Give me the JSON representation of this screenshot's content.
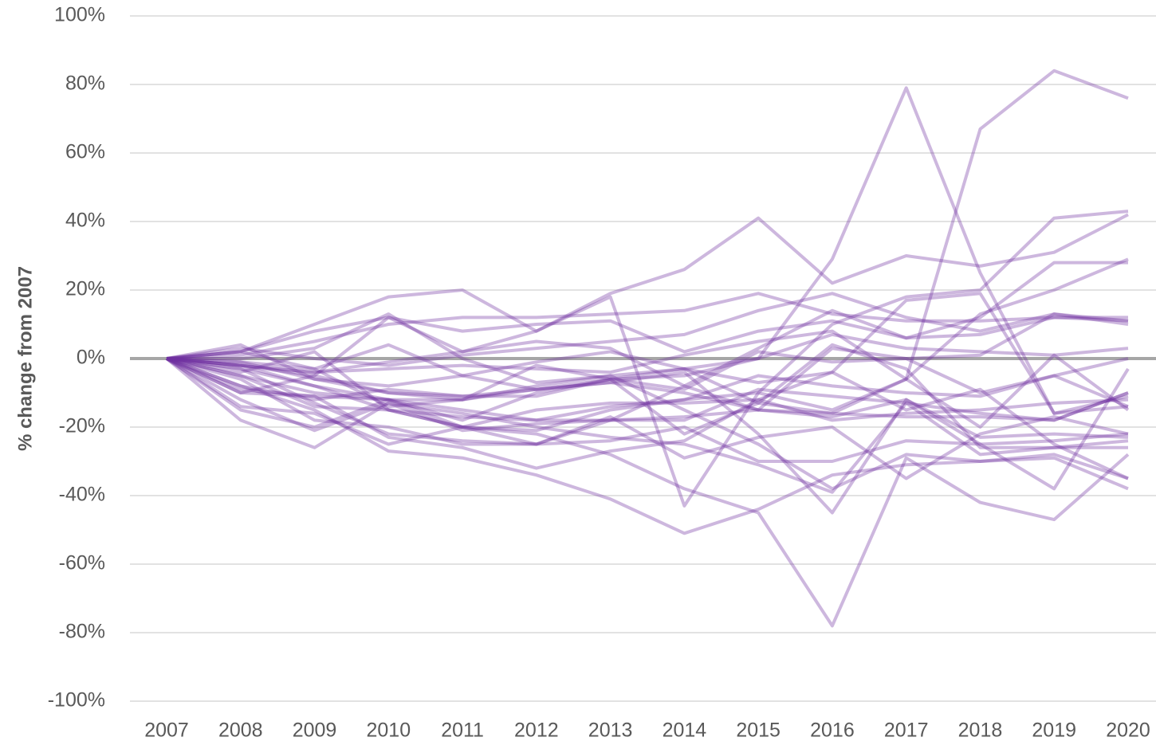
{
  "chart_data": {
    "type": "line",
    "y_label": "% change from 2007",
    "categories": [
      "2007",
      "2008",
      "2009",
      "2010",
      "2011",
      "2012",
      "2013",
      "2014",
      "2015",
      "2016",
      "2017",
      "2018",
      "2019",
      "2020"
    ],
    "ylim": [
      -100,
      100
    ],
    "yticks": [
      {
        "value": -100,
        "label": "-100%"
      },
      {
        "value": -80,
        "label": "-80%"
      },
      {
        "value": -60,
        "label": "-60%"
      },
      {
        "value": -40,
        "label": "-40%"
      },
      {
        "value": -20,
        "label": "-20%"
      },
      {
        "value": 0,
        "label": "0%"
      },
      {
        "value": 20,
        "label": "20%"
      },
      {
        "value": 40,
        "label": "40%"
      },
      {
        "value": 60,
        "label": "60%"
      },
      {
        "value": 80,
        "label": "80%"
      },
      {
        "value": 100,
        "label": "100%"
      }
    ],
    "grid": true,
    "color": "#7030a0",
    "opacity": 0.35,
    "series": [
      {
        "values": [
          0,
          -2,
          -5,
          -10,
          -12,
          -8,
          -5,
          -3,
          0,
          29,
          79,
          25,
          -16,
          -11
        ]
      },
      {
        "values": [
          0,
          -3,
          -8,
          -12,
          -15,
          -18,
          -14,
          -12,
          -10,
          -15,
          -6,
          67,
          84,
          76
        ]
      },
      {
        "values": [
          0,
          2,
          10,
          18,
          20,
          8,
          19,
          26,
          41,
          22,
          30,
          27,
          31,
          42
        ]
      },
      {
        "values": [
          0,
          -5,
          -10,
          -12,
          -20,
          -22,
          -28,
          -38,
          -45,
          -78,
          -29,
          -42,
          -47,
          -28
        ]
      },
      {
        "values": [
          0,
          -8,
          -15,
          -27,
          -29,
          -34,
          -41,
          -51,
          -44,
          -34,
          -31,
          -30,
          -28,
          -35
        ]
      },
      {
        "values": [
          0,
          -10,
          -5,
          12,
          2,
          8,
          18,
          -43,
          -10,
          10,
          18,
          20,
          41,
          43
        ]
      },
      {
        "values": [
          0,
          -2,
          -8,
          -15,
          -20,
          -25,
          -18,
          -8,
          3,
          14,
          6,
          12,
          28,
          28
        ]
      },
      {
        "values": [
          0,
          -15,
          -20,
          -12,
          -18,
          -10,
          -6,
          -3,
          -13,
          -16,
          -6,
          13,
          20,
          29
        ]
      },
      {
        "values": [
          0,
          4,
          -6,
          -10,
          -11,
          -9,
          -7,
          -4,
          -22,
          -45,
          -12,
          -25,
          -38,
          -3
        ]
      },
      {
        "values": [
          0,
          -12,
          -21,
          -13,
          -21,
          -19,
          -18,
          -18,
          -9,
          -11,
          -13,
          -16,
          -18,
          -10
        ]
      },
      {
        "values": [
          0,
          -10,
          -11,
          -12,
          -12,
          -9,
          -7,
          -10,
          -15,
          -16,
          -17,
          -17,
          -18,
          -10
        ]
      },
      {
        "values": [
          0,
          0,
          3,
          13,
          0,
          -7,
          -5,
          -15,
          -25,
          -38,
          -28,
          -30,
          -29,
          -38
        ]
      },
      {
        "values": [
          0,
          -3,
          -13,
          -22,
          -24,
          -25,
          -24,
          -20,
          -30,
          -30,
          -24,
          -25,
          -24,
          -22
        ]
      },
      {
        "values": [
          0,
          -5,
          -14,
          -15,
          -17,
          -18,
          -18,
          -17,
          -15,
          -17,
          -12,
          -23,
          -22,
          -23
        ]
      },
      {
        "values": [
          0,
          -8,
          -12,
          -9,
          -11,
          -11,
          -6,
          -5,
          0,
          7,
          3,
          2,
          1,
          3
        ]
      },
      {
        "values": [
          0,
          1,
          5,
          10,
          12,
          12,
          13,
          14,
          19,
          13,
          11,
          11,
          12,
          11
        ]
      },
      {
        "values": [
          0,
          2,
          8,
          12,
          8,
          10,
          11,
          2,
          8,
          11,
          6,
          7,
          12,
          12
        ]
      },
      {
        "values": [
          0,
          -1,
          -3,
          4,
          -5,
          -9,
          -6,
          -9,
          2,
          -1,
          0,
          1,
          13,
          11
        ]
      },
      {
        "values": [
          0,
          -4,
          2,
          -15,
          -20,
          -21,
          -15,
          -12,
          -5,
          -8,
          -10,
          -11,
          -5,
          -14
        ]
      },
      {
        "values": [
          0,
          -6,
          -18,
          -20,
          -25,
          -25,
          -17,
          -29,
          -23,
          -20,
          -35,
          -22,
          -17,
          -22
        ]
      },
      {
        "values": [
          0,
          -18,
          -26,
          -13,
          -16,
          -20,
          -23,
          -25,
          -31,
          -39,
          -13,
          -28,
          -26,
          -26
        ]
      },
      {
        "values": [
          0,
          -14,
          -16,
          -25,
          -20,
          -15,
          -13,
          -13,
          -12,
          -18,
          -16,
          -15,
          -13,
          -12
        ]
      },
      {
        "values": [
          0,
          3,
          0,
          -2,
          1,
          3,
          5,
          7,
          14,
          19,
          12,
          8,
          13,
          10
        ]
      },
      {
        "values": [
          0,
          -2,
          -4,
          -3,
          -2,
          -3,
          -4,
          1,
          5,
          8,
          -6,
          -20,
          1,
          -15
        ]
      },
      {
        "values": [
          0,
          -1,
          -6,
          -8,
          -5,
          -1,
          2,
          -3,
          -7,
          -4,
          17,
          19,
          -16,
          -14
        ]
      },
      {
        "values": [
          0,
          -9,
          -11,
          -23,
          -26,
          -32,
          -27,
          -24,
          -12,
          -4,
          -15,
          -9,
          -25,
          -35
        ]
      },
      {
        "values": [
          0,
          2,
          -3,
          -14,
          -12,
          -2,
          -6,
          -22,
          -13,
          4,
          -3,
          -26,
          -26,
          -24
        ]
      },
      {
        "values": [
          0,
          -2,
          -4,
          -1,
          2,
          5,
          3,
          -8,
          -15,
          3,
          0,
          -10,
          -5,
          0
        ]
      }
    ]
  }
}
